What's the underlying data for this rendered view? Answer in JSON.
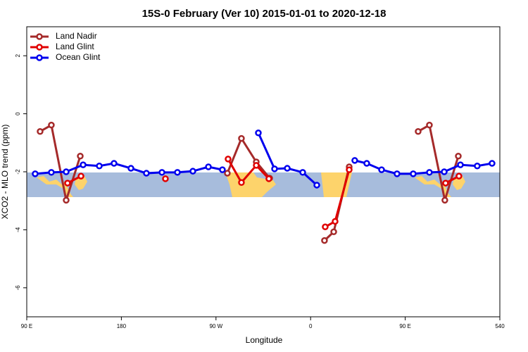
{
  "chart_data": {
    "type": "line",
    "title": "15S-0 February (Ver 10)   2015-01-01 to 2020-12-18",
    "xlabel": "Longitude",
    "ylabel": "XCO2 - MLO trend (ppm)",
    "xlim": [
      90,
      540
    ],
    "ylim": [
      -7,
      3
    ],
    "xticks": [
      {
        "value": 90,
        "label": "90 E"
      },
      180,
      {
        "value": 270,
        "label": "90 W"
      },
      {
        "value": 360,
        "label": "0"
      },
      {
        "value": 450,
        "label": "90 E"
      },
      540
    ],
    "yticks": [
      -6,
      -4,
      -2,
      0,
      2
    ],
    "legend": "top-left",
    "series": [
      {
        "name": "Land Nadir",
        "color": "#a52a2a",
        "x": [
          102.7,
          113.4,
          127.5,
          140.9,
          null,
          280.8,
          294.2,
          308.3,
          321.0,
          null,
          373.2,
          382.0,
          396.7,
          null,
          462.3,
          473.0,
          487.7,
          500.5
        ],
        "values": [
          -0.61,
          -0.39,
          -2.98,
          -1.46,
          null,
          -2.05,
          -0.85,
          -1.66,
          -2.22,
          null,
          -4.37,
          -4.07,
          -1.83,
          null,
          -0.61,
          -0.39,
          -2.98,
          -1.46
        ]
      },
      {
        "name": "Land Glint",
        "color": "#e00000",
        "x": [
          128.8,
          141.6,
          null,
          221.9,
          null,
          281.5,
          294.2,
          308.3,
          320.3,
          null,
          373.9,
          383.3,
          396.7,
          null,
          488.4,
          501.1
        ],
        "values": [
          -2.39,
          -2.15,
          null,
          -2.24,
          null,
          -1.56,
          -2.37,
          -1.78,
          -2.24,
          null,
          -3.9,
          -3.71,
          -1.93,
          null,
          -2.39,
          -2.15
        ]
      },
      {
        "name": "Ocean Glint",
        "color": "#0000ee",
        "x": [
          98.0,
          113.4,
          127.5,
          143.6,
          159.0,
          173.0,
          189.1,
          203.8,
          218.6,
          233.3,
          248.0,
          262.8,
          276.1,
          null,
          310.3,
          325.7,
          337.8,
          352.5,
          365.9,
          null,
          402.0,
          413.4,
          427.5,
          442.2,
          457.6,
          473.0,
          487.1,
          502.5,
          518.5,
          532.6
        ],
        "values": [
          -2.07,
          -2.02,
          -2.0,
          -1.76,
          -1.8,
          -1.71,
          -1.88,
          -2.05,
          -2.02,
          -2.02,
          -1.98,
          -1.83,
          -1.93,
          null,
          -0.66,
          -1.9,
          -1.88,
          -2.02,
          -2.46,
          null,
          -1.61,
          -1.71,
          -1.93,
          -2.07,
          -2.07,
          -2.02,
          -2.0,
          -1.76,
          -1.8,
          -1.71
        ]
      }
    ]
  }
}
